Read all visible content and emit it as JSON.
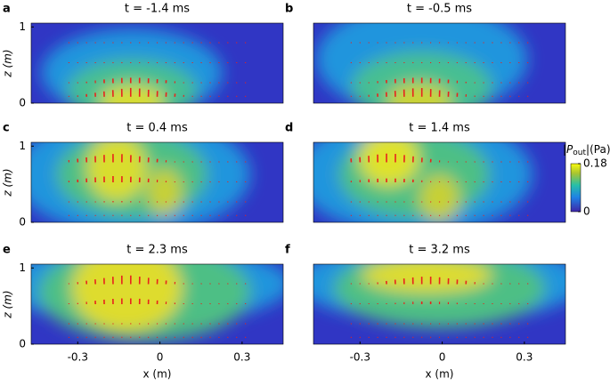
{
  "chart_data": [
    {
      "type": "heatmap",
      "label": "a",
      "title": "t = -1.4 ms",
      "xlim": [
        -0.47,
        0.45
      ],
      "ylim": [
        0,
        1.05
      ],
      "yticks": [
        0,
        1
      ],
      "ylabel": "z (m)"
    },
    {
      "type": "heatmap",
      "label": "b",
      "title": "t = -0.5 ms",
      "xlim": [
        -0.47,
        0.45
      ],
      "ylim": [
        0,
        1.05
      ]
    },
    {
      "type": "heatmap",
      "label": "c",
      "title": "t = 0.4 ms",
      "xlim": [
        -0.47,
        0.45
      ],
      "ylim": [
        0,
        1.05
      ],
      "yticks": [
        0,
        1
      ],
      "ylabel": "z (m)"
    },
    {
      "type": "heatmap",
      "label": "d",
      "title": "t = 1.4 ms",
      "xlim": [
        -0.47,
        0.45
      ],
      "ylim": [
        0,
        1.05
      ]
    },
    {
      "type": "heatmap",
      "label": "e",
      "title": "t = 2.3 ms",
      "xlim": [
        -0.47,
        0.45
      ],
      "ylim": [
        0,
        1.05
      ],
      "yticks": [
        0,
        1
      ],
      "ylabel": "z (m)",
      "xticks": [
        -0.3,
        0,
        0.3
      ],
      "xlabel": "x (m)"
    },
    {
      "type": "heatmap",
      "label": "f",
      "title": "t = 3.2 ms",
      "xlim": [
        -0.47,
        0.45
      ],
      "ylim": [
        0,
        1.05
      ],
      "xticks": [
        -0.3,
        0,
        0.3
      ],
      "xlabel": "x (m)"
    }
  ],
  "colorbar": {
    "label_parts": [
      "|",
      "P",
      "out",
      "|(Pa)"
    ],
    "clim": [
      0,
      0.18
    ],
    "ticks": [
      0,
      0.18
    ]
  }
}
